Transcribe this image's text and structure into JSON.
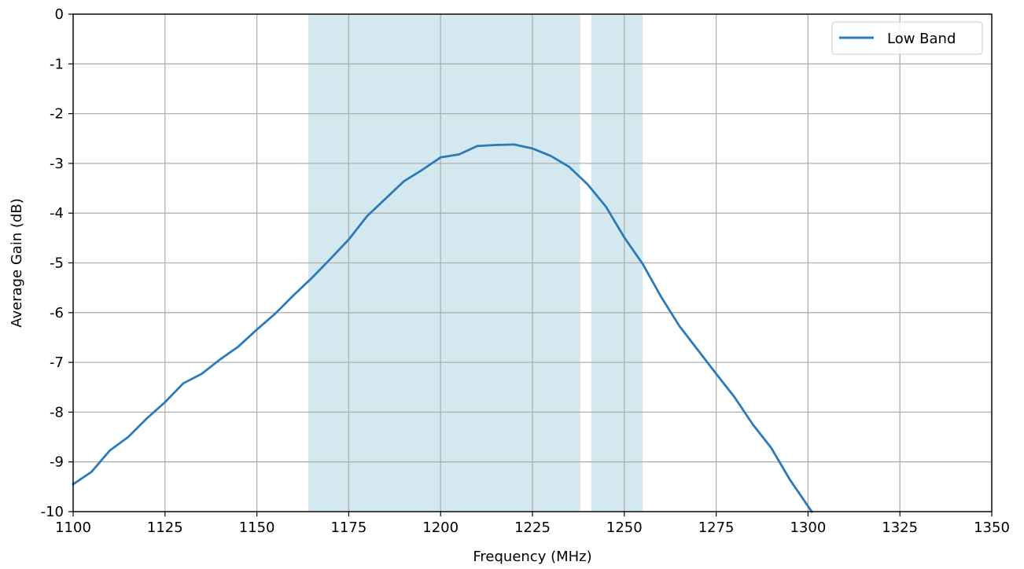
{
  "chart_data": {
    "type": "line",
    "title": "",
    "xlabel": "Frequency (MHz)",
    "ylabel": "Average Gain (dB)",
    "xlim": [
      1100,
      1350
    ],
    "ylim": [
      -10,
      0
    ],
    "xticks": [
      1100,
      1125,
      1150,
      1175,
      1200,
      1225,
      1250,
      1275,
      1300,
      1325,
      1350
    ],
    "xtick_labels": [
      "1100",
      "1125",
      "1150",
      "1175",
      "1200",
      "1225",
      "1250",
      "1275",
      "1300",
      "1325",
      "1350"
    ],
    "yticks": [
      0,
      -1,
      -2,
      -3,
      -4,
      -5,
      -6,
      -7,
      -8,
      -9,
      -10
    ],
    "ytick_labels": [
      "0",
      "-1",
      "-2",
      "-3",
      "-4",
      "-5",
      "-6",
      "-7",
      "-8",
      "-9",
      "-10"
    ],
    "grid": true,
    "legend_position": "top-right",
    "shaded_bands": [
      {
        "x_start": 1164,
        "x_end": 1238,
        "color": "#d4e8f0"
      },
      {
        "x_start": 1241,
        "x_end": 1255,
        "color": "#d4e8f0"
      }
    ],
    "series": [
      {
        "name": "Low Band",
        "color": "#2b7bba",
        "x": [
          1100,
          1105,
          1110,
          1115,
          1120,
          1125,
          1130,
          1135,
          1140,
          1145,
          1150,
          1155,
          1160,
          1165,
          1170,
          1175,
          1180,
          1185,
          1190,
          1195,
          1200,
          1205,
          1210,
          1215,
          1220,
          1225,
          1230,
          1235,
          1240,
          1245,
          1250,
          1255,
          1260,
          1265,
          1270,
          1275,
          1280,
          1285,
          1290,
          1295,
          1301
        ],
        "y": [
          -9.45,
          -9.2,
          -8.77,
          -8.5,
          -8.13,
          -7.8,
          -7.42,
          -7.23,
          -6.94,
          -6.68,
          -6.34,
          -6.02,
          -5.65,
          -5.3,
          -4.92,
          -4.53,
          -4.06,
          -3.71,
          -3.36,
          -3.13,
          -2.88,
          -2.82,
          -2.65,
          -2.63,
          -2.62,
          -2.7,
          -2.85,
          -3.07,
          -3.42,
          -3.87,
          -4.49,
          -5.02,
          -5.68,
          -6.27,
          -6.75,
          -7.23,
          -7.7,
          -8.25,
          -8.72,
          -9.35,
          -10.0
        ]
      }
    ]
  }
}
